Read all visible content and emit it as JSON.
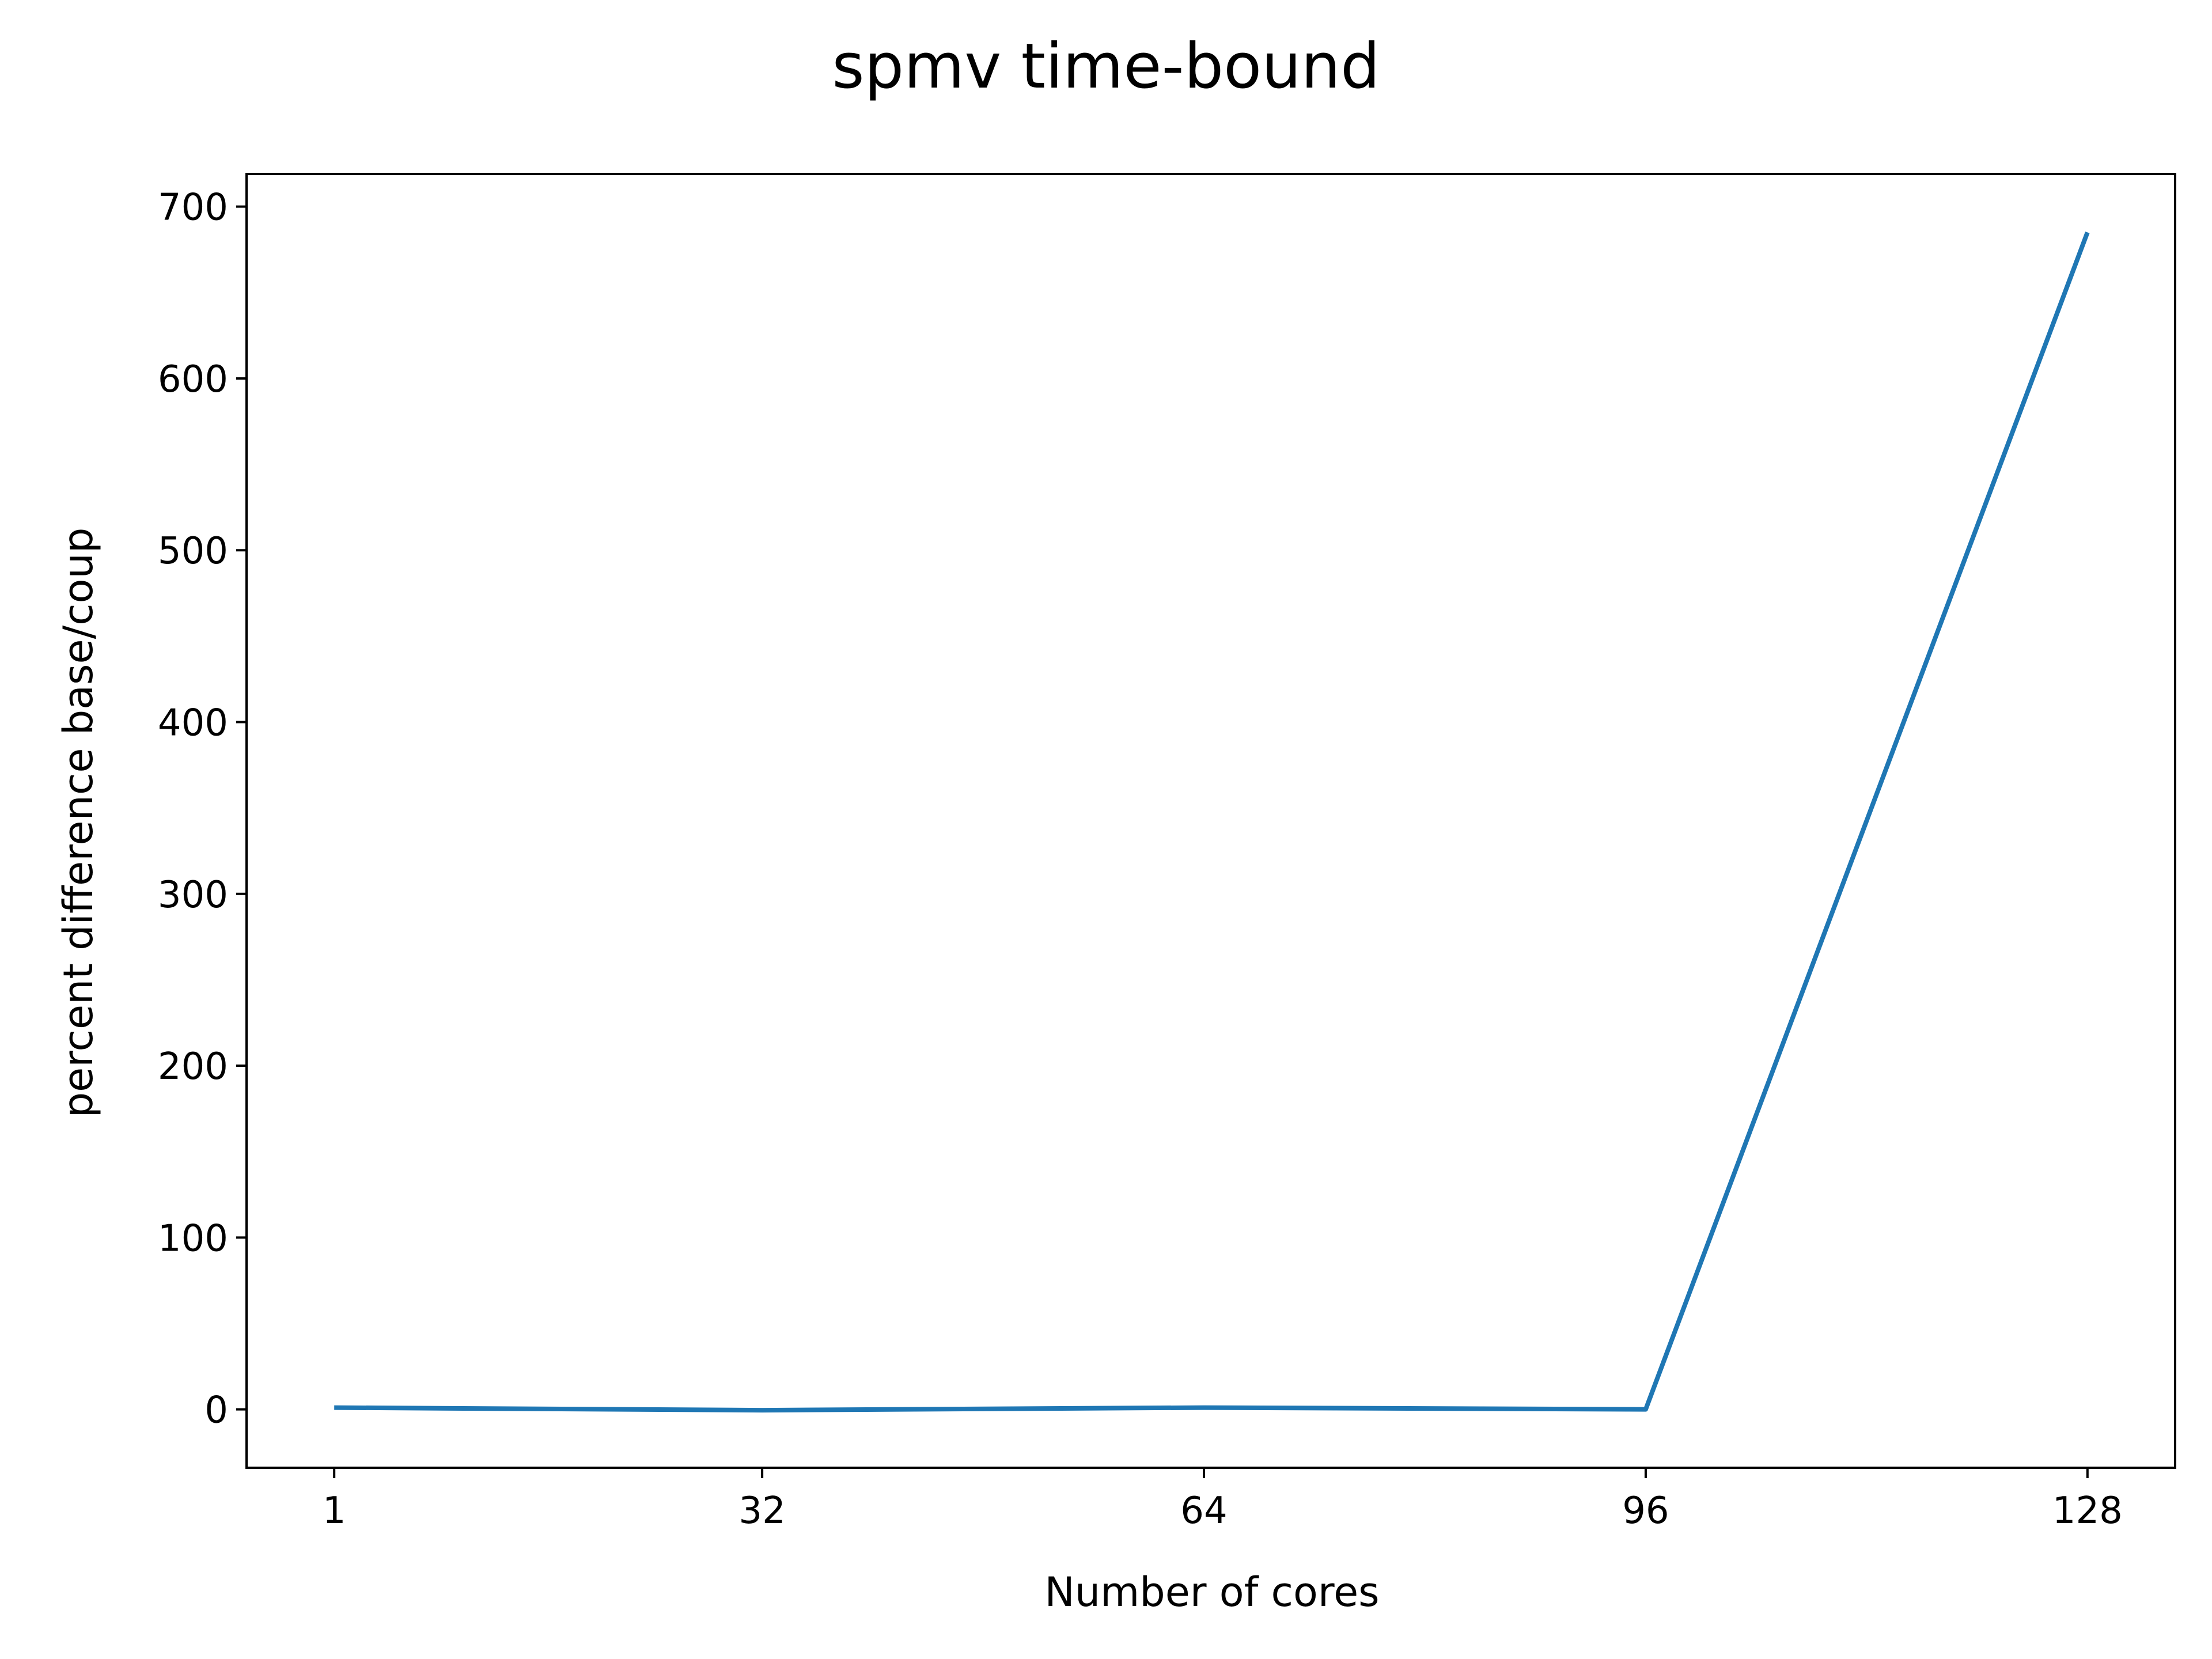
{
  "chart_data": {
    "type": "line",
    "title": "spmv time-bound",
    "xlabel": "Number of cores",
    "ylabel": "percent difference base/coup",
    "x": [
      1,
      32,
      64,
      96,
      128
    ],
    "series": [
      {
        "values": [
          1,
          -0.5,
          1,
          0,
          685
        ],
        "color": "#1f77b4"
      }
    ],
    "xticks": [
      1,
      32,
      64,
      96,
      128
    ],
    "yticks": [
      0,
      100,
      200,
      300,
      400,
      500,
      600,
      700
    ],
    "xlim": [
      -5.35,
      134.35
    ],
    "ylim": [
      -34,
      719
    ],
    "grid": false,
    "legend": "none"
  }
}
